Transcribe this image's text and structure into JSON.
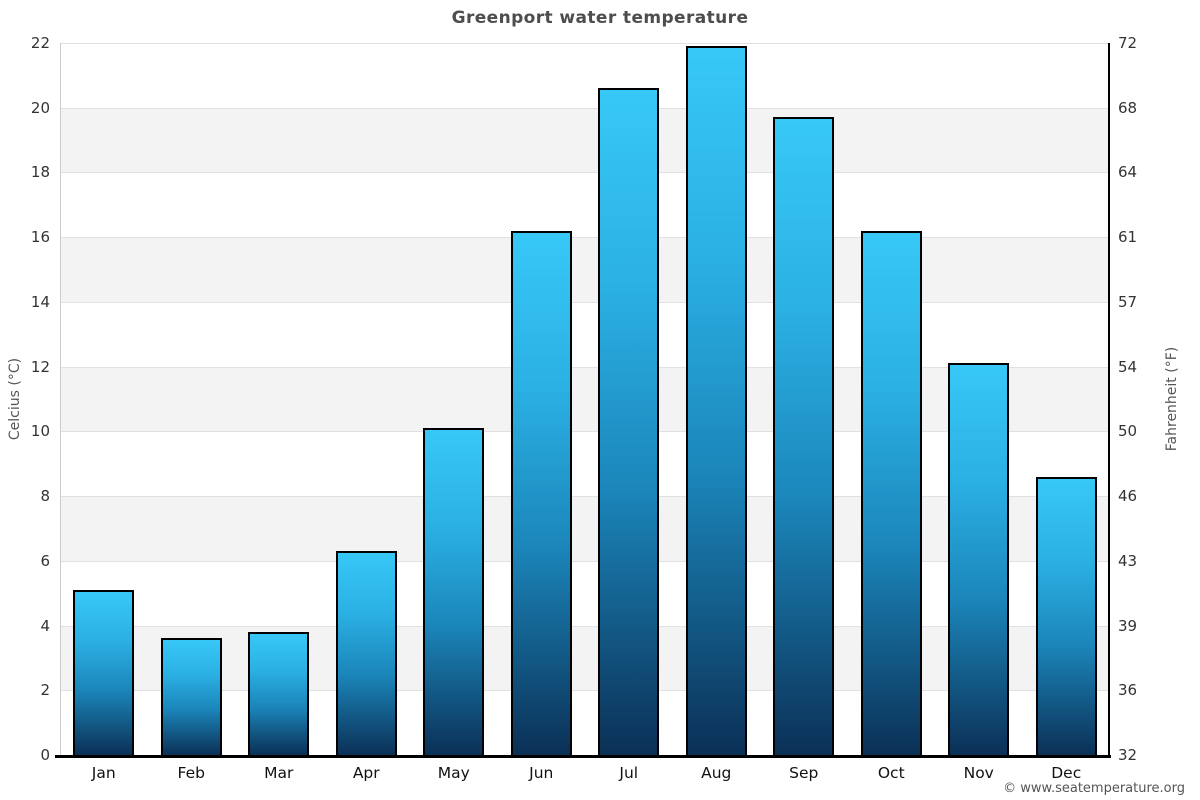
{
  "page": {
    "footer": "© www.seatemperature.org"
  },
  "chart_data": {
    "type": "bar",
    "title": "Greenport water temperature",
    "categories": [
      "Jan",
      "Feb",
      "Mar",
      "Apr",
      "May",
      "Jun",
      "Jul",
      "Aug",
      "Sep",
      "Oct",
      "Nov",
      "Dec"
    ],
    "values": [
      5.1,
      3.6,
      3.8,
      6.3,
      10.1,
      16.2,
      20.6,
      21.9,
      19.7,
      16.2,
      12.1,
      8.6
    ],
    "ylabel_left": "Celcius (°C)",
    "ylabel_right": "Fahrenheit (°F)",
    "ylim": [
      0,
      22
    ],
    "yticks_left": [
      0,
      2,
      4,
      6,
      8,
      10,
      12,
      14,
      16,
      18,
      20,
      22
    ],
    "yticks_right_labels": [
      "32",
      "36",
      "39",
      "43",
      "46",
      "50",
      "54",
      "57",
      "61",
      "64",
      "68",
      "72"
    ],
    "grid": "horizontal gridlines with alternating gray bands",
    "legend": "none",
    "colors": {
      "bar_gradient_top": "#37c8f7",
      "bar_gradient_bottom": "#0b3056",
      "bar_border": "#000000",
      "band_gray": "#f3f3f3",
      "gridline": "#e1e1e1",
      "title_text": "#4d4d4d",
      "tick_text": "#333333"
    }
  }
}
